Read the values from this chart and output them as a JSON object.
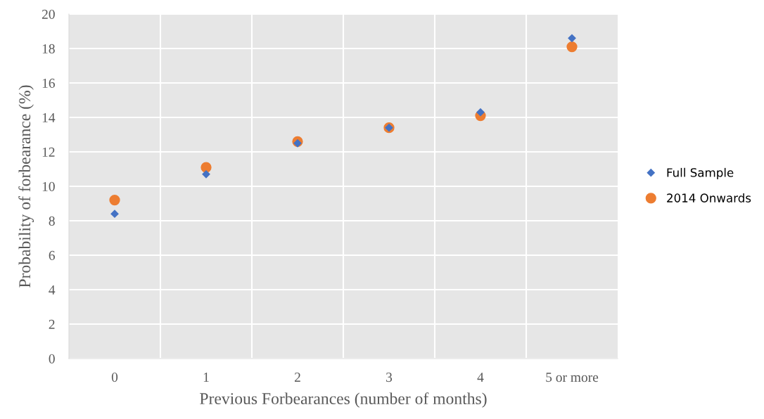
{
  "chart_data": {
    "type": "scatter",
    "xlabel": "Previous Forbearances (number of months)",
    "ylabel": "Probability of forbearance (%)",
    "categories": [
      "0",
      "1",
      "2",
      "3",
      "4",
      "5 or more"
    ],
    "series": [
      {
        "name": "Full Sample",
        "color": "#4472c4",
        "marker": "diamond",
        "values": [
          8.4,
          10.7,
          12.5,
          13.4,
          14.3,
          18.6
        ]
      },
      {
        "name": "2014 Onwards",
        "color": "#ed7d31",
        "marker": "circle",
        "values": [
          9.2,
          11.1,
          12.6,
          13.4,
          14.1,
          18.1
        ]
      }
    ],
    "ylim": [
      0,
      20
    ],
    "yticks": [
      0,
      2,
      4,
      6,
      8,
      10,
      12,
      14,
      16,
      18,
      20
    ],
    "grid": true,
    "legend": "right"
  }
}
